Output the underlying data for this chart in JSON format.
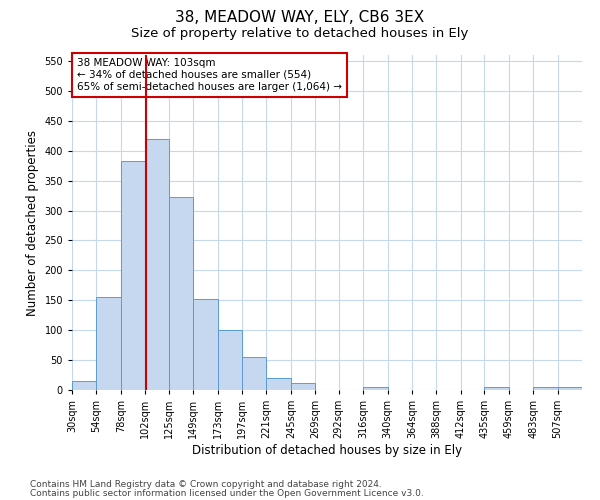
{
  "title": "38, MEADOW WAY, ELY, CB6 3EX",
  "subtitle": "Size of property relative to detached houses in Ely",
  "xlabel": "Distribution of detached houses by size in Ely",
  "ylabel": "Number of detached properties",
  "footnote1": "Contains HM Land Registry data © Crown copyright and database right 2024.",
  "footnote2": "Contains public sector information licensed under the Open Government Licence v3.0.",
  "bar_labels": [
    "30sqm",
    "54sqm",
    "78sqm",
    "102sqm",
    "125sqm",
    "149sqm",
    "173sqm",
    "197sqm",
    "221sqm",
    "245sqm",
    "269sqm",
    "292sqm",
    "316sqm",
    "340sqm",
    "364sqm",
    "388sqm",
    "412sqm",
    "435sqm",
    "459sqm",
    "483sqm",
    "507sqm"
  ],
  "bar_values": [
    15,
    155,
    383,
    420,
    323,
    152,
    100,
    55,
    20,
    12,
    0,
    0,
    5,
    0,
    0,
    0,
    0,
    5,
    0,
    5,
    5
  ],
  "bar_color": "#c5d8f0",
  "bar_edge_color": "#5b9bd5",
  "property_line_x": 103,
  "property_line_color": "#cc0000",
  "annotation_text": "38 MEADOW WAY: 103sqm\n← 34% of detached houses are smaller (554)\n65% of semi-detached houses are larger (1,064) →",
  "annotation_box_color": "#ffffff",
  "annotation_box_edge_color": "#cc0000",
  "ylim": [
    0,
    560
  ],
  "yticks": [
    0,
    50,
    100,
    150,
    200,
    250,
    300,
    350,
    400,
    450,
    500,
    550
  ],
  "background_color": "#ffffff",
  "grid_color": "#c5d8f0",
  "title_fontsize": 11,
  "subtitle_fontsize": 9.5,
  "axis_label_fontsize": 8.5,
  "tick_fontsize": 7,
  "annotation_fontsize": 7.5,
  "footnote_fontsize": 6.5
}
